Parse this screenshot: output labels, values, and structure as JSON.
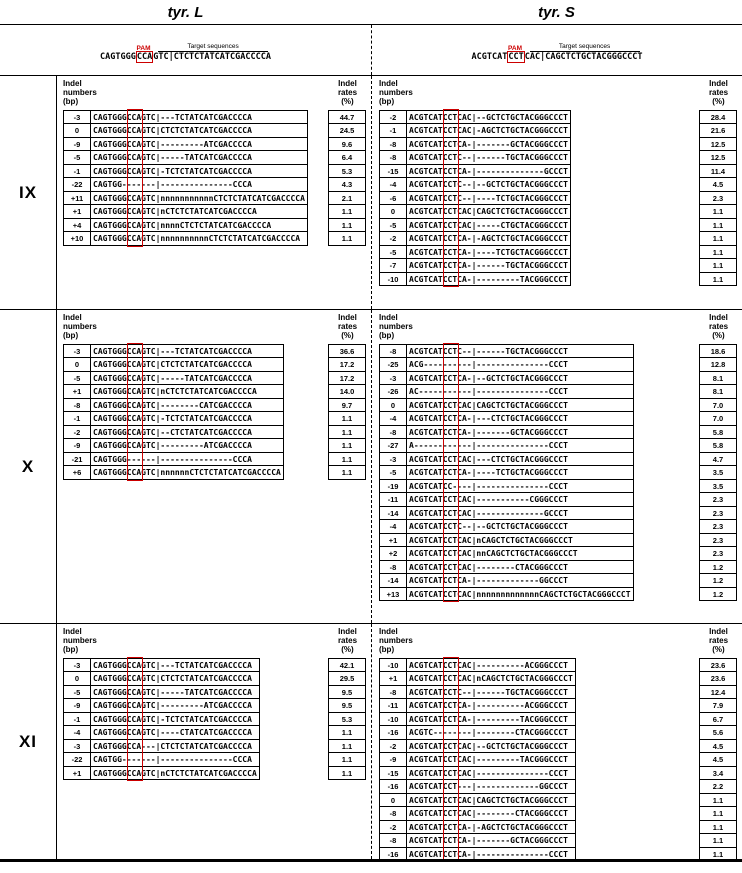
{
  "titles": {
    "left": "tyr. L",
    "right": "tyr. S"
  },
  "colors": {
    "pam_red": "#cc0000"
  },
  "reference": {
    "pam_label": "PAM",
    "target_label": "Target sequences",
    "left": {
      "pre": "CAGTGGG",
      "pam": "CCA",
      "post": "GTC|CTCTCTATCATCGACCCCA"
    },
    "right": {
      "pre": "ACGTCAT",
      "pam": "CCT",
      "post": "CAC|CAGCTCTGCTACGGGCCCT"
    }
  },
  "panel_headers": {
    "numbers": [
      "Indel",
      "numbers",
      "(bp)"
    ],
    "rates": [
      "Indel",
      "rates",
      "(%)"
    ]
  },
  "groups": [
    {
      "label": "IX",
      "left": {
        "rows": [
          {
            "indel": "-3",
            "seq": "CAGTGGGCCAGTC|---TCTATCATCGACCCCA",
            "rate": "44.7"
          },
          {
            "indel": "0",
            "seq": "CAGTGGGCCAGTC|CTCTCTATCATCGACCCCA",
            "rate": "24.5"
          },
          {
            "indel": "-9",
            "seq": "CAGTGGGCCAGTC|---------ATCGACCCCA",
            "rate": "9.6"
          },
          {
            "indel": "-5",
            "seq": "CAGTGGGCCAGTC|-----TATCATCGACCCCA",
            "rate": "6.4"
          },
          {
            "indel": "-1",
            "seq": "CAGTGGGCCAGTC|-TCTCTATCATCGACCCCA",
            "rate": "5.3"
          },
          {
            "indel": "-22",
            "seq": "CAGTGG-------|---------------CCCA",
            "rate": "4.3"
          },
          {
            "indel": "+11",
            "seq": "CAGTGGGCCAGTC|nnnnnnnnnnnCTCTCTATCATCGACCCCA",
            "rate": "2.1"
          },
          {
            "indel": "+1",
            "seq": "CAGTGGGCCAGTC|nCTCTCTATCATCGACCCCA",
            "rate": "1.1"
          },
          {
            "indel": "+4",
            "seq": "CAGTGGGCCAGTC|nnnnCTCTCTATCATCGACCCCA",
            "rate": "1.1"
          },
          {
            "indel": "+10",
            "seq": "CAGTGGGCCAGTC|nnnnnnnnnnCTCTCTATCATCGACCCCA",
            "rate": "1.1"
          }
        ]
      },
      "right": {
        "rows": [
          {
            "indel": "-2",
            "seq": "ACGTCATCCTCAC|--GCTCTGCTACGGGCCCT",
            "rate": "28.4"
          },
          {
            "indel": "-1",
            "seq": "ACGTCATCCTCAC|-AGCTCTGCTACGGGCCCT",
            "rate": "21.6"
          },
          {
            "indel": "-8",
            "seq": "ACGTCATCCTCA-|-------GCTACGGGCCCT",
            "rate": "12.5"
          },
          {
            "indel": "-8",
            "seq": "ACGTCATCCTC--|------TGCTACGGGCCCT",
            "rate": "12.5"
          },
          {
            "indel": "-15",
            "seq": "ACGTCATCCTCA-|--------------GCCCT",
            "rate": "11.4"
          },
          {
            "indel": "-4",
            "seq": "ACGTCATCCTC--|--GCTCTGCTACGGGCCCT",
            "rate": "4.5"
          },
          {
            "indel": "-6",
            "seq": "ACGTCATCCTC--|----TCTGCTACGGGCCCT",
            "rate": "2.3"
          },
          {
            "indel": "0",
            "seq": "ACGTCATCCTCAC|CAGCTCTGCTACGGGCCCT",
            "rate": "1.1"
          },
          {
            "indel": "-5",
            "seq": "ACGTCATCCTCAC|-----CTGCTACGGGCCCT",
            "rate": "1.1"
          },
          {
            "indel": "-2",
            "seq": "ACGTCATCCTCA-|-AGCTCTGCTACGGGCCCT",
            "rate": "1.1"
          },
          {
            "indel": "-5",
            "seq": "ACGTCATCCTCA-|----TCTGCTACGGGCCCT",
            "rate": "1.1"
          },
          {
            "indel": "-7",
            "seq": "ACGTCATCCTCA-|------TGCTACGGGCCCT",
            "rate": "1.1"
          },
          {
            "indel": "-10",
            "seq": "ACGTCATCCTCA-|---------TACGGGCCCT",
            "rate": "1.1"
          }
        ]
      }
    },
    {
      "label": "X",
      "left": {
        "rows": [
          {
            "indel": "-3",
            "seq": "CAGTGGGCCAGTC|---TCTATCATCGACCCCA",
            "rate": "36.6"
          },
          {
            "indel": "0",
            "seq": "CAGTGGGCCAGTC|CTCTCTATCATCGACCCCA",
            "rate": "17.2"
          },
          {
            "indel": "-5",
            "seq": "CAGTGGGCCAGTC|-----TATCATCGACCCCA",
            "rate": "17.2"
          },
          {
            "indel": "+1",
            "seq": "CAGTGGGCCAGTC|nCTCTCTATCATCGACCCCA",
            "rate": "14.0"
          },
          {
            "indel": "-8",
            "seq": "CAGTGGGCCAGTC|--------CATCGACCCCA",
            "rate": "9.7"
          },
          {
            "indel": "-1",
            "seq": "CAGTGGGCCAGTC|-TCTCTATCATCGACCCCA",
            "rate": "1.1"
          },
          {
            "indel": "-2",
            "seq": "CAGTGGGCCAGTC|--CTCTATCATCGACCCCA",
            "rate": "1.1"
          },
          {
            "indel": "-9",
            "seq": "CAGTGGGCCAGTC|---------ATCGACCCCA",
            "rate": "1.1"
          },
          {
            "indel": "-21",
            "seq": "CAGTGGG------|---------------CCCA",
            "rate": "1.1"
          },
          {
            "indel": "+6",
            "seq": "CAGTGGGCCAGTC|nnnnnnCTCTCTATCATCGACCCCA",
            "rate": "1.1"
          }
        ]
      },
      "right": {
        "rows": [
          {
            "indel": "-8",
            "seq": "ACGTCATCCTC--|------TGCTACGGGCCCT",
            "rate": "18.6"
          },
          {
            "indel": "-25",
            "seq": "ACG----------|---------------CCCT",
            "rate": "12.8"
          },
          {
            "indel": "-3",
            "seq": "ACGTCATCCTCA-|--GCTCTGCTACGGGCCCT",
            "rate": "8.1"
          },
          {
            "indel": "-26",
            "seq": "AC-----------|---------------CCCT",
            "rate": "8.1"
          },
          {
            "indel": "0",
            "seq": "ACGTCATCCTCAC|CAGCTCTGCTACGGGCCCT",
            "rate": "7.0"
          },
          {
            "indel": "-4",
            "seq": "ACGTCATCCTCA-|---CTCTGCTACGGGCCCT",
            "rate": "7.0"
          },
          {
            "indel": "-8",
            "seq": "ACGTCATCCTCA-|-------GCTACGGGCCCT",
            "rate": "5.8"
          },
          {
            "indel": "-27",
            "seq": "A------------|---------------CCCT",
            "rate": "5.8"
          },
          {
            "indel": "-3",
            "seq": "ACGTCATCCTCAC|---CTCTGCTACGGGCCCT",
            "rate": "4.7"
          },
          {
            "indel": "-5",
            "seq": "ACGTCATCCTCA-|----TCTGCTACGGGCCCT",
            "rate": "3.5"
          },
          {
            "indel": "-19",
            "seq": "ACGTCATCC----|---------------CCCT",
            "rate": "3.5"
          },
          {
            "indel": "-11",
            "seq": "ACGTCATCCTCAC|-----------CGGGCCCT",
            "rate": "2.3"
          },
          {
            "indel": "-14",
            "seq": "ACGTCATCCTCAC|--------------GCCCT",
            "rate": "2.3"
          },
          {
            "indel": "-4",
            "seq": "ACGTCATCCTC--|--GCTCTGCTACGGGCCCT",
            "rate": "2.3"
          },
          {
            "indel": "+1",
            "seq": "ACGTCATCCTCAC|nCAGCTCTGCTACGGGCCCT",
            "rate": "2.3"
          },
          {
            "indel": "+2",
            "seq": "ACGTCATCCTCAC|nnCAGCTCTGCTACGGGCCCT",
            "rate": "2.3"
          },
          {
            "indel": "-8",
            "seq": "ACGTCATCCTCAC|--------CTACGGGCCCT",
            "rate": "1.2"
          },
          {
            "indel": "-14",
            "seq": "ACGTCATCCTCA-|-------------GGCCCT",
            "rate": "1.2"
          },
          {
            "indel": "+13",
            "seq": "ACGTCATCCTCAC|nnnnnnnnnnnnnCAGCTCTGCTACGGGCCCT",
            "rate": "1.2"
          }
        ]
      }
    },
    {
      "label": "XI",
      "left": {
        "rows": [
          {
            "indel": "-3",
            "seq": "CAGTGGGCCAGTC|---TCTATCATCGACCCCA",
            "rate": "42.1"
          },
          {
            "indel": "0",
            "seq": "CAGTGGGCCAGTC|CTCTCTATCATCGACCCCA",
            "rate": "29.5"
          },
          {
            "indel": "-5",
            "seq": "CAGTGGGCCAGTC|-----TATCATCGACCCCA",
            "rate": "9.5"
          },
          {
            "indel": "-9",
            "seq": "CAGTGGGCCAGTC|---------ATCGACCCCA",
            "rate": "9.5"
          },
          {
            "indel": "-1",
            "seq": "CAGTGGGCCAGTC|-TCTCTATCATCGACCCCA",
            "rate": "5.3"
          },
          {
            "indel": "-4",
            "seq": "CAGTGGGCCAGTC|----CTATCATCGACCCCA",
            "rate": "1.1"
          },
          {
            "indel": "-3",
            "seq": "CAGTGGGCCA---|CTCTCTATCATCGACCCCA",
            "rate": "1.1"
          },
          {
            "indel": "-22",
            "seq": "CAGTGG-------|---------------CCCA",
            "rate": "1.1"
          },
          {
            "indel": "+1",
            "seq": "CAGTGGGCCAGTC|nCTCTCTATCATCGACCCCA",
            "rate": "1.1"
          }
        ]
      },
      "right": {
        "rows": [
          {
            "indel": "-10",
            "seq": "ACGTCATCCTCAC|----------ACGGGCCCT",
            "rate": "23.6"
          },
          {
            "indel": "+1",
            "seq": "ACGTCATCCTCAC|nCAGCTCTGCTACGGGCCCT",
            "rate": "23.6"
          },
          {
            "indel": "-8",
            "seq": "ACGTCATCCTC--|------TGCTACGGGCCCT",
            "rate": "12.4"
          },
          {
            "indel": "-11",
            "seq": "ACGTCATCCTCA-|----------ACGGGCCCT",
            "rate": "7.9"
          },
          {
            "indel": "-10",
            "seq": "ACGTCATCCTCA-|---------TACGGGCCCT",
            "rate": "6.7"
          },
          {
            "indel": "-16",
            "seq": "ACGTC--------|--------CTACGGGCCCT",
            "rate": "5.6"
          },
          {
            "indel": "-2",
            "seq": "ACGTCATCCTCAC|--GCTCTGCTACGGGCCCT",
            "rate": "4.5"
          },
          {
            "indel": "-9",
            "seq": "ACGTCATCCTCAC|---------TACGGGCCCT",
            "rate": "4.5"
          },
          {
            "indel": "-15",
            "seq": "ACGTCATCCTCAC|---------------CCCT",
            "rate": "3.4"
          },
          {
            "indel": "-16",
            "seq": "ACGTCATCCT---|-------------GGCCCT",
            "rate": "2.2"
          },
          {
            "indel": "0",
            "seq": "ACGTCATCCTCAC|CAGCTCTGCTACGGGCCCT",
            "rate": "1.1"
          },
          {
            "indel": "-8",
            "seq": "ACGTCATCCTCAC|--------CTACGGGCCCT",
            "rate": "1.1"
          },
          {
            "indel": "-2",
            "seq": "ACGTCATCCTCA-|-AGCTCTGCTACGGGCCCT",
            "rate": "1.1"
          },
          {
            "indel": "-8",
            "seq": "ACGTCATCCTCA-|-------GCTACGGGCCCT",
            "rate": "1.1"
          },
          {
            "indel": "-16",
            "seq": "ACGTCATCCTCA-|---------------CCCT",
            "rate": "1.1"
          }
        ]
      }
    }
  ]
}
